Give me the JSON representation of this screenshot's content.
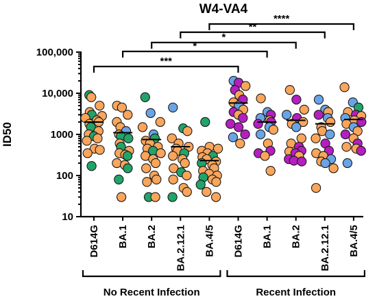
{
  "colors": {
    "orange": "#F9A55B",
    "green": "#20A46A",
    "blue": "#6AA4E6",
    "magenta": "#B51FC0"
  },
  "chart_data": {
    "type": "scatter",
    "title": "W4-VA4",
    "ylabel": "ID50",
    "y_scale": "log",
    "ylim": [
      10,
      100000
    ],
    "y_ticks": [
      10,
      100,
      1000,
      10000,
      100000
    ],
    "y_tick_labels": [
      "10",
      "100",
      "1000",
      "10,000",
      "100,000"
    ],
    "categories": [
      "D614G",
      "BA.1",
      "BA.2",
      "BA.2.12.1",
      "BA.4/5",
      "D614G",
      "BA.1",
      "BA.2",
      "BA.2.12.1",
      "BA.4/5"
    ],
    "groups": [
      {
        "label": "No Recent Infection",
        "categories": [
          0,
          1,
          2,
          3,
          4
        ]
      },
      {
        "label": "Recent Infection",
        "categories": [
          5,
          6,
          7,
          8,
          9
        ]
      }
    ],
    "medians": [
      2000,
      1100,
      750,
      500,
      230,
      5800,
      2000,
      2200,
      1800,
      2300
    ],
    "series": [
      {
        "category": "D614G",
        "group": "No Recent Infection",
        "points": [
          {
            "v": 9000,
            "c": "green"
          },
          {
            "v": 8000,
            "c": "orange"
          },
          {
            "v": 5000,
            "c": "orange"
          },
          {
            "v": 3500,
            "c": "orange"
          },
          {
            "v": 3000,
            "c": "green"
          },
          {
            "v": 2800,
            "c": "orange"
          },
          {
            "v": 2500,
            "c": "orange"
          },
          {
            "v": 2200,
            "c": "orange"
          },
          {
            "v": 2000,
            "c": "orange"
          },
          {
            "v": 1800,
            "c": "orange"
          },
          {
            "v": 1500,
            "c": "green"
          },
          {
            "v": 1200,
            "c": "orange"
          },
          {
            "v": 1000,
            "c": "orange"
          },
          {
            "v": 900,
            "c": "green"
          },
          {
            "v": 800,
            "c": "orange"
          },
          {
            "v": 700,
            "c": "orange"
          },
          {
            "v": 450,
            "c": "orange"
          },
          {
            "v": 420,
            "c": "orange"
          },
          {
            "v": 350,
            "c": "orange"
          },
          {
            "v": 170,
            "c": "green"
          }
        ]
      },
      {
        "category": "BA.1",
        "group": "No Recent Infection",
        "points": [
          {
            "v": 5000,
            "c": "orange"
          },
          {
            "v": 4500,
            "c": "orange"
          },
          {
            "v": 3000,
            "c": "orange"
          },
          {
            "v": 2000,
            "c": "orange"
          },
          {
            "v": 1500,
            "c": "orange"
          },
          {
            "v": 1200,
            "c": "blue"
          },
          {
            "v": 1000,
            "c": "orange"
          },
          {
            "v": 900,
            "c": "green"
          },
          {
            "v": 800,
            "c": "green"
          },
          {
            "v": 600,
            "c": "orange"
          },
          {
            "v": 500,
            "c": "green"
          },
          {
            "v": 400,
            "c": "orange"
          },
          {
            "v": 350,
            "c": "orange"
          },
          {
            "v": 320,
            "c": "orange"
          },
          {
            "v": 300,
            "c": "green"
          },
          {
            "v": 200,
            "c": "orange"
          },
          {
            "v": 180,
            "c": "orange"
          },
          {
            "v": 150,
            "c": "green"
          },
          {
            "v": 80,
            "c": "green"
          },
          {
            "v": 30,
            "c": "orange"
          }
        ]
      },
      {
        "category": "BA.2",
        "group": "No Recent Infection",
        "points": [
          {
            "v": 8000,
            "c": "green"
          },
          {
            "v": 3300,
            "c": "blue"
          },
          {
            "v": 2000,
            "c": "orange"
          },
          {
            "v": 1500,
            "c": "orange"
          },
          {
            "v": 1000,
            "c": "blue"
          },
          {
            "v": 800,
            "c": "green"
          },
          {
            "v": 700,
            "c": "orange"
          },
          {
            "v": 600,
            "c": "orange"
          },
          {
            "v": 500,
            "c": "orange"
          },
          {
            "v": 450,
            "c": "orange"
          },
          {
            "v": 400,
            "c": "green"
          },
          {
            "v": 350,
            "c": "orange"
          },
          {
            "v": 300,
            "c": "orange"
          },
          {
            "v": 250,
            "c": "orange"
          },
          {
            "v": 200,
            "c": "orange"
          },
          {
            "v": 150,
            "c": "orange"
          },
          {
            "v": 100,
            "c": "orange"
          },
          {
            "v": 80,
            "c": "orange"
          },
          {
            "v": 70,
            "c": "orange"
          },
          {
            "v": 30,
            "c": "green"
          },
          {
            "v": 30,
            "c": "orange"
          }
        ]
      },
      {
        "category": "BA.2.12.1",
        "group": "No Recent Infection",
        "points": [
          {
            "v": 4500,
            "c": "blue"
          },
          {
            "v": 1400,
            "c": "green"
          },
          {
            "v": 1200,
            "c": "orange"
          },
          {
            "v": 800,
            "c": "orange"
          },
          {
            "v": 600,
            "c": "orange"
          },
          {
            "v": 500,
            "c": "orange"
          },
          {
            "v": 450,
            "c": "orange"
          },
          {
            "v": 400,
            "c": "orange"
          },
          {
            "v": 350,
            "c": "green"
          },
          {
            "v": 300,
            "c": "orange"
          },
          {
            "v": 250,
            "c": "orange"
          },
          {
            "v": 200,
            "c": "orange"
          },
          {
            "v": 150,
            "c": "orange"
          },
          {
            "v": 120,
            "c": "green"
          },
          {
            "v": 100,
            "c": "orange"
          },
          {
            "v": 80,
            "c": "orange"
          },
          {
            "v": 50,
            "c": "orange"
          },
          {
            "v": 40,
            "c": "orange"
          },
          {
            "v": 30,
            "c": "green"
          }
        ]
      },
      {
        "category": "BA.4/5",
        "group": "No Recent Infection",
        "points": [
          {
            "v": 2000,
            "c": "green"
          },
          {
            "v": 500,
            "c": "orange"
          },
          {
            "v": 450,
            "c": "orange"
          },
          {
            "v": 400,
            "c": "orange"
          },
          {
            "v": 350,
            "c": "orange"
          },
          {
            "v": 300,
            "c": "green"
          },
          {
            "v": 280,
            "c": "orange"
          },
          {
            "v": 250,
            "c": "orange"
          },
          {
            "v": 220,
            "c": "orange"
          },
          {
            "v": 200,
            "c": "green"
          },
          {
            "v": 180,
            "c": "orange"
          },
          {
            "v": 150,
            "c": "orange"
          },
          {
            "v": 130,
            "c": "orange"
          },
          {
            "v": 110,
            "c": "orange"
          },
          {
            "v": 100,
            "c": "orange"
          },
          {
            "v": 90,
            "c": "green"
          },
          {
            "v": 80,
            "c": "orange"
          },
          {
            "v": 70,
            "c": "orange"
          },
          {
            "v": 60,
            "c": "green"
          },
          {
            "v": 40,
            "c": "orange"
          },
          {
            "v": 30,
            "c": "orange"
          }
        ]
      },
      {
        "category": "D614G",
        "group": "Recent Infection",
        "points": [
          {
            "v": 20000,
            "c": "blue"
          },
          {
            "v": 18000,
            "c": "magenta"
          },
          {
            "v": 15000,
            "c": "orange"
          },
          {
            "v": 12000,
            "c": "magenta"
          },
          {
            "v": 9000,
            "c": "orange"
          },
          {
            "v": 7000,
            "c": "magenta"
          },
          {
            "v": 6000,
            "c": "orange"
          },
          {
            "v": 5000,
            "c": "blue"
          },
          {
            "v": 4000,
            "c": "orange"
          },
          {
            "v": 3500,
            "c": "magenta"
          },
          {
            "v": 3000,
            "c": "orange"
          },
          {
            "v": 2500,
            "c": "magenta"
          },
          {
            "v": 1800,
            "c": "magenta"
          },
          {
            "v": 1500,
            "c": "magenta"
          },
          {
            "v": 1000,
            "c": "magenta"
          },
          {
            "v": 850,
            "c": "blue"
          },
          {
            "v": 600,
            "c": "orange"
          }
        ]
      },
      {
        "category": "BA.1",
        "group": "Recent Infection",
        "points": [
          {
            "v": 7500,
            "c": "orange"
          },
          {
            "v": 3500,
            "c": "blue"
          },
          {
            "v": 3000,
            "c": "magenta"
          },
          {
            "v": 2500,
            "c": "blue"
          },
          {
            "v": 2200,
            "c": "orange"
          },
          {
            "v": 2000,
            "c": "magenta"
          },
          {
            "v": 1800,
            "c": "magenta"
          },
          {
            "v": 1500,
            "c": "blue"
          },
          {
            "v": 1300,
            "c": "orange"
          },
          {
            "v": 1000,
            "c": "blue"
          },
          {
            "v": 600,
            "c": "orange"
          },
          {
            "v": 400,
            "c": "magenta"
          },
          {
            "v": 350,
            "c": "magenta"
          },
          {
            "v": 300,
            "c": "orange"
          },
          {
            "v": 130,
            "c": "orange"
          }
        ]
      },
      {
        "category": "BA.2",
        "group": "Recent Infection",
        "points": [
          {
            "v": 12000,
            "c": "orange"
          },
          {
            "v": 7000,
            "c": "magenta"
          },
          {
            "v": 4000,
            "c": "orange"
          },
          {
            "v": 3000,
            "c": "blue"
          },
          {
            "v": 2500,
            "c": "magenta"
          },
          {
            "v": 2000,
            "c": "orange"
          },
          {
            "v": 1800,
            "c": "orange"
          },
          {
            "v": 1500,
            "c": "blue"
          },
          {
            "v": 800,
            "c": "orange"
          },
          {
            "v": 600,
            "c": "orange"
          },
          {
            "v": 500,
            "c": "magenta"
          },
          {
            "v": 400,
            "c": "magenta"
          },
          {
            "v": 380,
            "c": "orange"
          },
          {
            "v": 350,
            "c": "magenta"
          },
          {
            "v": 300,
            "c": "orange"
          },
          {
            "v": 250,
            "c": "magenta"
          },
          {
            "v": 230,
            "c": "magenta"
          },
          {
            "v": 220,
            "c": "magenta"
          }
        ]
      },
      {
        "category": "BA.2.12.1",
        "group": "Recent Infection",
        "points": [
          {
            "v": 7000,
            "c": "blue"
          },
          {
            "v": 4000,
            "c": "blue"
          },
          {
            "v": 3500,
            "c": "orange"
          },
          {
            "v": 3000,
            "c": "magenta"
          },
          {
            "v": 2500,
            "c": "blue"
          },
          {
            "v": 2000,
            "c": "orange"
          },
          {
            "v": 1500,
            "c": "orange"
          },
          {
            "v": 1200,
            "c": "orange"
          },
          {
            "v": 1000,
            "c": "blue"
          },
          {
            "v": 800,
            "c": "orange"
          },
          {
            "v": 600,
            "c": "magenta"
          },
          {
            "v": 400,
            "c": "magenta"
          },
          {
            "v": 350,
            "c": "orange"
          },
          {
            "v": 300,
            "c": "orange"
          },
          {
            "v": 250,
            "c": "blue"
          },
          {
            "v": 220,
            "c": "orange"
          },
          {
            "v": 200,
            "c": "blue"
          },
          {
            "v": 150,
            "c": "orange"
          },
          {
            "v": 50,
            "c": "orange"
          }
        ]
      },
      {
        "category": "BA.4/5",
        "group": "Recent Infection",
        "points": [
          {
            "v": 14000,
            "c": "orange"
          },
          {
            "v": 6000,
            "c": "blue"
          },
          {
            "v": 4500,
            "c": "green"
          },
          {
            "v": 3500,
            "c": "orange"
          },
          {
            "v": 3000,
            "c": "magenta"
          },
          {
            "v": 2800,
            "c": "orange"
          },
          {
            "v": 2500,
            "c": "blue"
          },
          {
            "v": 2200,
            "c": "orange"
          },
          {
            "v": 2000,
            "c": "magenta"
          },
          {
            "v": 1800,
            "c": "orange"
          },
          {
            "v": 1500,
            "c": "blue"
          },
          {
            "v": 1200,
            "c": "orange"
          },
          {
            "v": 1000,
            "c": "magenta"
          },
          {
            "v": 800,
            "c": "orange"
          },
          {
            "v": 600,
            "c": "magenta"
          },
          {
            "v": 500,
            "c": "orange"
          },
          {
            "v": 450,
            "c": "orange"
          },
          {
            "v": 400,
            "c": "magenta"
          },
          {
            "v": 200,
            "c": "blue"
          }
        ]
      }
    ],
    "comparisons": [
      {
        "from": 0,
        "to": 5,
        "label": "***"
      },
      {
        "from": 1,
        "to": 6,
        "label": "*"
      },
      {
        "from": 2,
        "to": 7,
        "label": "*"
      },
      {
        "from": 3,
        "to": 8,
        "label": "**"
      },
      {
        "from": 4,
        "to": 9,
        "label": "****"
      }
    ]
  }
}
